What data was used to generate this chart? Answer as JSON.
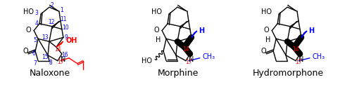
{
  "background_color": "#ffffff",
  "molecule_names": [
    "Naloxone",
    "Morphine",
    "Hydromorphone"
  ],
  "name_fontsize": 9,
  "centers": [
    82,
    255,
    418
  ],
  "lw_single": 1.0,
  "lw_bold": 2.5,
  "lw_wedge": 2.0
}
